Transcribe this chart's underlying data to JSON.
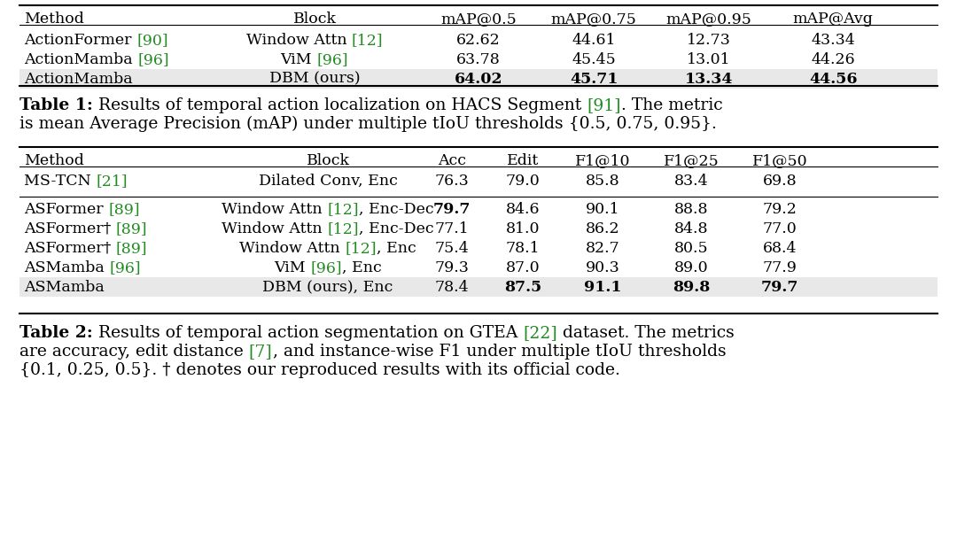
{
  "bg_color": "#ffffff",
  "text_color": "#000000",
  "green_color": "#228B22",
  "gray_bg": "#e8e8e8",
  "table1": {
    "headers": [
      "Method",
      "Block",
      "mAP@0.5",
      "mAP@0.75",
      "mAP@0.95",
      "mAP@Avg"
    ],
    "rows": [
      {
        "method_parts": [
          [
            "ActionFormer ",
            "#000000",
            false
          ],
          [
            "[90]",
            "#228B22",
            false
          ]
        ],
        "block_parts": [
          [
            "Window Attn ",
            "#000000",
            false
          ],
          [
            "[12]",
            "#228B22",
            false
          ]
        ],
        "vals": [
          "62.62",
          "44.61",
          "12.73",
          "43.34"
        ],
        "bold": [
          false,
          false,
          false,
          false
        ],
        "highlight": false
      },
      {
        "method_parts": [
          [
            "ActionMamba ",
            "#000000",
            false
          ],
          [
            "[96]",
            "#228B22",
            false
          ]
        ],
        "block_parts": [
          [
            "ViM ",
            "#000000",
            false
          ],
          [
            "[96]",
            "#228B22",
            false
          ]
        ],
        "vals": [
          "63.78",
          "45.45",
          "13.01",
          "44.26"
        ],
        "bold": [
          false,
          false,
          false,
          false
        ],
        "highlight": false
      },
      {
        "method_parts": [
          [
            "ActionMamba",
            "#000000",
            false
          ]
        ],
        "block_parts": [
          [
            "DBM (ours)",
            "#000000",
            false
          ]
        ],
        "vals": [
          "64.02",
          "45.71",
          "13.34",
          "44.56"
        ],
        "bold": [
          true,
          true,
          true,
          true
        ],
        "highlight": true
      }
    ]
  },
  "table2": {
    "headers": [
      "Method",
      "Block",
      "Acc",
      "Edit",
      "F1@10",
      "F1@25",
      "F1@50"
    ],
    "rows": [
      {
        "method_parts": [
          [
            "MS-TCN ",
            "#000000",
            false
          ],
          [
            "[21]",
            "#228B22",
            false
          ]
        ],
        "block_parts": [
          [
            "Dilated Conv, Enc",
            "#000000",
            false
          ]
        ],
        "vals": [
          "76.3",
          "79.0",
          "85.8",
          "83.4",
          "69.8"
        ],
        "bold": [
          false,
          false,
          false,
          false,
          false
        ],
        "highlight": false,
        "group": 0
      },
      {
        "method_parts": [
          [
            "ASFormer ",
            "#000000",
            false
          ],
          [
            "[89]",
            "#228B22",
            false
          ]
        ],
        "block_parts": [
          [
            "Window Attn ",
            "#000000",
            false
          ],
          [
            "[12]",
            "#228B22",
            false
          ],
          [
            ", Enc-Dec",
            "#000000",
            false
          ]
        ],
        "vals": [
          "79.7",
          "84.6",
          "90.1",
          "88.8",
          "79.2"
        ],
        "bold": [
          true,
          false,
          false,
          false,
          false
        ],
        "highlight": false,
        "group": 1
      },
      {
        "method_parts": [
          [
            "ASFormer† ",
            "#000000",
            false
          ],
          [
            "[89]",
            "#228B22",
            false
          ]
        ],
        "block_parts": [
          [
            "Window Attn ",
            "#000000",
            false
          ],
          [
            "[12]",
            "#228B22",
            false
          ],
          [
            ", Enc-Dec",
            "#000000",
            false
          ]
        ],
        "vals": [
          "77.1",
          "81.0",
          "86.2",
          "84.8",
          "77.0"
        ],
        "bold": [
          false,
          false,
          false,
          false,
          false
        ],
        "highlight": false,
        "group": 1
      },
      {
        "method_parts": [
          [
            "ASFormer† ",
            "#000000",
            false
          ],
          [
            "[89]",
            "#228B22",
            false
          ]
        ],
        "block_parts": [
          [
            "Window Attn ",
            "#000000",
            false
          ],
          [
            "[12]",
            "#228B22",
            false
          ],
          [
            ", Enc",
            "#000000",
            false
          ]
        ],
        "vals": [
          "75.4",
          "78.1",
          "82.7",
          "80.5",
          "68.4"
        ],
        "bold": [
          false,
          false,
          false,
          false,
          false
        ],
        "highlight": false,
        "group": 1
      },
      {
        "method_parts": [
          [
            "ASMamba ",
            "#000000",
            false
          ],
          [
            "[96]",
            "#228B22",
            false
          ]
        ],
        "block_parts": [
          [
            "ViM ",
            "#000000",
            false
          ],
          [
            "[96]",
            "#228B22",
            false
          ],
          [
            ", Enc",
            "#000000",
            false
          ]
        ],
        "vals": [
          "79.3",
          "87.0",
          "90.3",
          "89.0",
          "77.9"
        ],
        "bold": [
          false,
          false,
          false,
          false,
          false
        ],
        "highlight": false,
        "group": 1
      },
      {
        "method_parts": [
          [
            "ASMamba",
            "#000000",
            false
          ]
        ],
        "block_parts": [
          [
            "DBM (ours), Enc",
            "#000000",
            false
          ]
        ],
        "vals": [
          "78.4",
          "87.5",
          "91.1",
          "89.8",
          "79.7"
        ],
        "bold": [
          false,
          true,
          true,
          true,
          true
        ],
        "highlight": true,
        "group": 1
      }
    ]
  }
}
